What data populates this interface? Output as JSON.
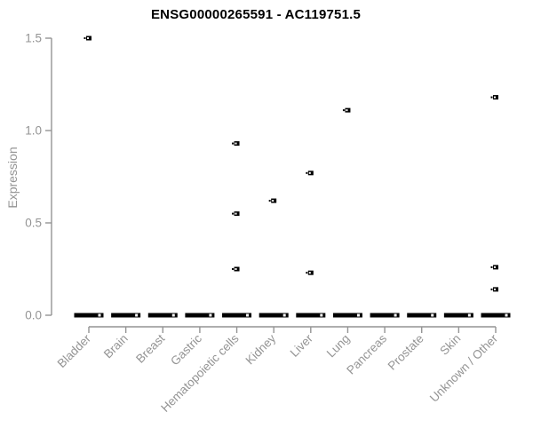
{
  "chart_data": {
    "type": "scatter",
    "title": "ENSG00000265591 - AC119751.5",
    "xlabel": "",
    "ylabel": "Expression",
    "ylim": [
      0,
      1.5
    ],
    "yticks": [
      0.0,
      0.5,
      1.0,
      1.5
    ],
    "ytick_labels": [
      "0.0",
      "0.5",
      "1.0",
      "1.5"
    ],
    "categories": [
      "Bladder",
      "Brain",
      "Breast",
      "Gastric",
      "Hematopoietic cells",
      "Kidney",
      "Liver",
      "Lung",
      "Pancreas",
      "Prostate",
      "Skin",
      "Unknown / Other"
    ],
    "baseline_bars": {
      "note": "thick black collapsed boxplot bar at expression 0 for every category",
      "value": 0.0
    },
    "outlier_points": [
      {
        "category": "Bladder",
        "value": 1.5
      },
      {
        "category": "Hematopoietic cells",
        "value": 0.93
      },
      {
        "category": "Hematopoietic cells",
        "value": 0.55
      },
      {
        "category": "Hematopoietic cells",
        "value": 0.25
      },
      {
        "category": "Kidney",
        "value": 0.62
      },
      {
        "category": "Liver",
        "value": 0.77
      },
      {
        "category": "Liver",
        "value": 0.23
      },
      {
        "category": "Lung",
        "value": 1.11
      },
      {
        "category": "Unknown / Other",
        "value": 1.18
      },
      {
        "category": "Unknown / Other",
        "value": 0.26
      },
      {
        "category": "Unknown / Other",
        "value": 0.14
      }
    ],
    "grid": false,
    "legend": false,
    "colors": {
      "points": "#000000",
      "bars": "#000000",
      "axis": "#949494",
      "tick_text": "#949494",
      "title_text": "#000000",
      "background": "#ffffff"
    }
  }
}
